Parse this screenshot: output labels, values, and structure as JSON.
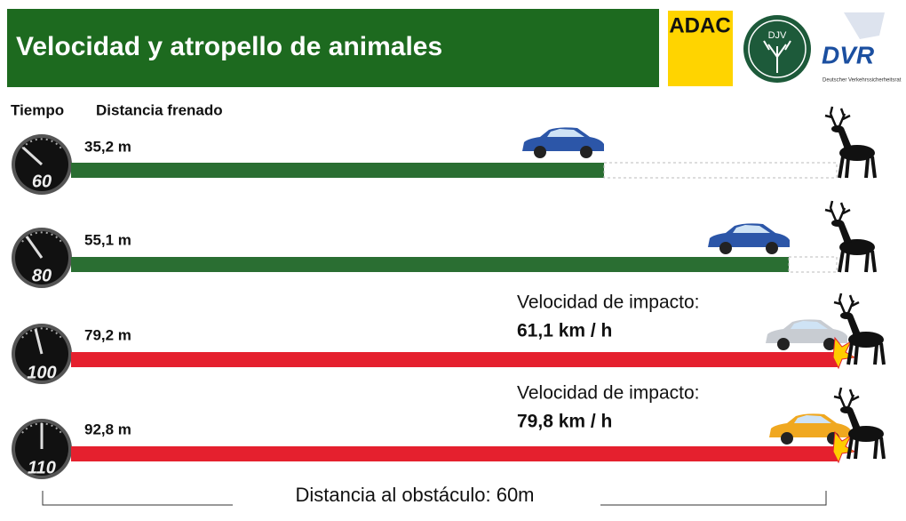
{
  "header": {
    "title": "Velocidad y atropello de animales",
    "logos": [
      "ADAC",
      "DJV",
      "DVR",
      "Deutscher Verkehrssicherheitsrat"
    ]
  },
  "column_headers": [
    "Tiempo",
    "Distancia frenado"
  ],
  "rows": [
    {
      "speed": "60",
      "distance": "35,2 m"
    },
    {
      "speed": "80",
      "distance": "55,1 m"
    },
    {
      "speed": "100",
      "distance": "79,2 m",
      "impact_caption": "Velocidad de impacto:",
      "impact_speed": "61,1 km / h"
    },
    {
      "speed": "110",
      "distance": "92,8 m",
      "impact_caption": "Velocidad de impacto:",
      "impact_speed": "79,8 km / h"
    }
  ],
  "footer": "Distancia al obstáculo: 60m"
}
